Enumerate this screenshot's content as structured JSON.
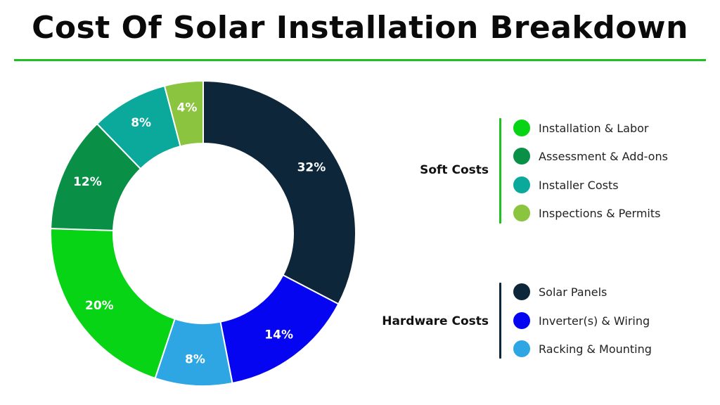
{
  "title": "Cost Of Solar Installation Breakdown",
  "colors": {
    "rule": "#1fc01f"
  },
  "chart_data": {
    "type": "pie",
    "title": "Cost Of Solar Installation Breakdown",
    "slices": [
      {
        "label": "Solar Panels",
        "value": 32,
        "display": "32%",
        "color": "#0e263a",
        "group": "Hardware Costs"
      },
      {
        "label": "Inverter(s) & Wiring",
        "value": 14,
        "display": "14%",
        "color": "#0505f2",
        "group": "Hardware Costs"
      },
      {
        "label": "Racking & Mounting",
        "value": 8,
        "display": "8%",
        "color": "#2ea6e4",
        "group": "Hardware Costs"
      },
      {
        "label": "Installation & Labor",
        "value": 20,
        "display": "20%",
        "color": "#08d416",
        "group": "Soft Costs"
      },
      {
        "label": "Assessment & Add-ons",
        "value": 12,
        "display": "12%",
        "color": "#0a8f47",
        "group": "Soft Costs"
      },
      {
        "label": "Installer Costs",
        "value": 8,
        "display": "8%",
        "color": "#0aa99c",
        "group": "Soft Costs"
      },
      {
        "label": "Inspections & Permits",
        "value": 4,
        "display": "4%",
        "color": "#8bc43f",
        "group": "Soft Costs"
      }
    ],
    "legend": {
      "groups": [
        {
          "name": "Soft Costs",
          "bar_color": "#1fc01f",
          "items": [
            {
              "label": "Installation & Labor",
              "color": "#08d416"
            },
            {
              "label": "Assessment & Add-ons",
              "color": "#0a8f47"
            },
            {
              "label": "Installer Costs",
              "color": "#0aa99c"
            },
            {
              "label": "Inspections & Permits",
              "color": "#8bc43f"
            }
          ]
        },
        {
          "name": "Hardware Costs",
          "bar_color": "#0e263a",
          "items": [
            {
              "label": "Solar Panels",
              "color": "#0e263a"
            },
            {
              "label": "Inverter(s) & Wiring",
              "color": "#0505f2"
            },
            {
              "label": "Racking & Mounting",
              "color": "#2ea6e4"
            }
          ]
        }
      ]
    }
  }
}
